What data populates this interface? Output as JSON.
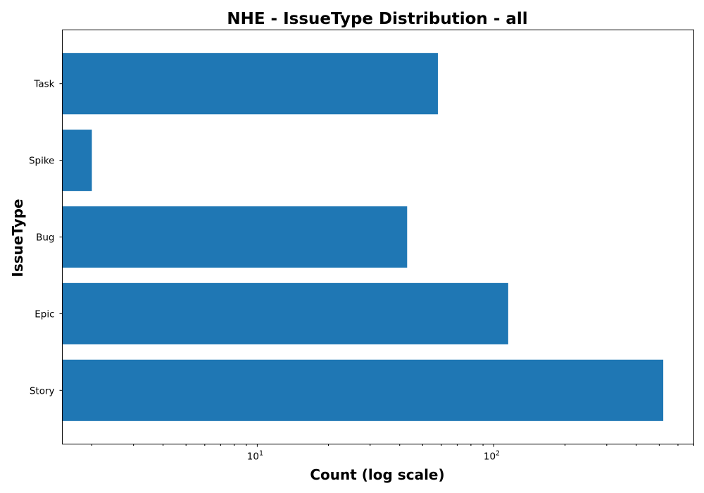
{
  "chart_data": {
    "type": "bar",
    "orientation": "horizontal",
    "title": "NHE - IssueType Distribution - all",
    "xlabel": "Count (log scale)",
    "ylabel": "IssueType",
    "x_scale": "log",
    "xlim": [
      1.5,
      700
    ],
    "x_major_ticks": [
      {
        "value": 10,
        "base": "10",
        "exponent": "1"
      },
      {
        "value": 100,
        "base": "10",
        "exponent": "2"
      }
    ],
    "categories": [
      "Story",
      "Epic",
      "Bug",
      "Spike",
      "Task"
    ],
    "values": [
      520,
      115,
      43,
      2,
      58
    ],
    "bar_color": "#1f77b4",
    "grid": false,
    "legend": "none"
  }
}
